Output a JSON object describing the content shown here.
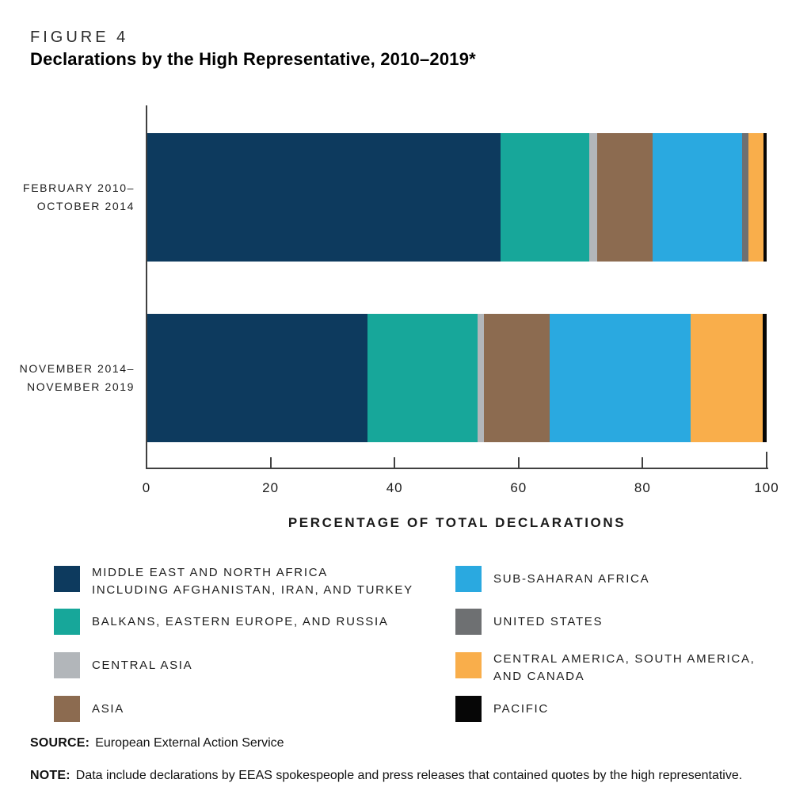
{
  "figure": {
    "label": "FIGURE 4",
    "title": "Declarations by the High Representative, 2010–2019*"
  },
  "chart_data": {
    "type": "bar",
    "orientation": "horizontal-stacked",
    "title": "Declarations by the High Representative, 2010–2019*",
    "xlabel": "PERCENTAGE OF TOTAL DECLARATIONS",
    "ylabel": "",
    "xlim": [
      0,
      100
    ],
    "xticks": [
      0,
      20,
      40,
      60,
      80,
      100
    ],
    "grid": false,
    "legend_position": "bottom-two-columns",
    "categories": [
      {
        "lines": [
          "FEBRUARY 2010–",
          "OCTOBER 2014"
        ]
      },
      {
        "lines": [
          "NOVEMBER 2014–",
          "NOVEMBER 2019"
        ]
      }
    ],
    "series": [
      {
        "key": "mena",
        "name": "Middle East and North Africa including Afghanistan, Iran, and Turkey",
        "legend_lines": [
          "MIDDLE EAST AND NORTH AFRICA",
          "INCLUDING AFGHANISTAN, IRAN, AND TURKEY"
        ],
        "color": "#0d3a5e",
        "values": [
          57.0,
          35.5
        ]
      },
      {
        "key": "balkans",
        "name": "Balkans, Eastern Europe, and Russia",
        "legend_lines": [
          "BALKANS, EASTERN EUROPE, AND RUSSIA"
        ],
        "color": "#17a79a",
        "values": [
          14.3,
          17.8
        ]
      },
      {
        "key": "central-asia",
        "name": "Central Asia",
        "legend_lines": [
          "CENTRAL ASIA"
        ],
        "color": "#b2b6ba",
        "values": [
          1.4,
          1.0
        ]
      },
      {
        "key": "asia",
        "name": "Asia",
        "legend_lines": [
          "ASIA"
        ],
        "color": "#8c6b50",
        "values": [
          8.9,
          10.7
        ]
      },
      {
        "key": "sub-saharan-africa",
        "name": "Sub-Saharan Africa",
        "legend_lines": [
          "SUB-SAHARAN AFRICA"
        ],
        "color": "#2aa9e0",
        "values": [
          14.4,
          22.7
        ]
      },
      {
        "key": "united-states",
        "name": "United States",
        "legend_lines": [
          "UNITED STATES"
        ],
        "color": "#6e7072",
        "values": [
          1.1,
          0
        ]
      },
      {
        "key": "americas",
        "name": "Central America, South America, and Canada",
        "legend_lines": [
          "CENTRAL AMERICA, SOUTH AMERICA,",
          "AND CANADA"
        ],
        "color": "#f9ae4b",
        "values": [
          2.4,
          11.7
        ]
      },
      {
        "key": "pacific",
        "name": "Pacific",
        "legend_lines": [
          "PACIFIC"
        ],
        "color": "#060606",
        "values": [
          0.5,
          0.6
        ]
      }
    ]
  },
  "legend": {
    "columns": [
      {
        "series_indexes": [
          0,
          1,
          2,
          3
        ]
      },
      {
        "series_indexes": [
          4,
          5,
          6,
          7
        ]
      }
    ]
  },
  "source": {
    "label": "SOURCE:",
    "text": "European External Action Service"
  },
  "note": {
    "label": "NOTE:",
    "text": "Data include declarations by EEAS spokespeople and press releases that contained quotes by the high representative."
  }
}
